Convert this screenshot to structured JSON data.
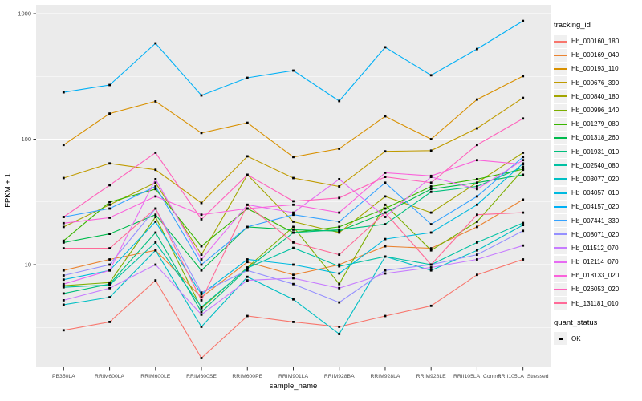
{
  "chart_data": {
    "type": "line",
    "title": "",
    "xlabel": "sample_name",
    "ylabel": "FPKM + 1",
    "y_scale": "log10",
    "ylim": [
      1.5,
      1100
    ],
    "y_ticks": [
      10,
      100,
      1000
    ],
    "y_tick_labels": [
      "10",
      "100",
      "1000"
    ],
    "grid": true,
    "panel_background": "#EBEBEB",
    "gridline_color": "#FFFFFF",
    "axis_text_color": "#4D4D4D",
    "point_color": "#000000",
    "legend_position": "right",
    "categories": [
      "PB350LA",
      "RRIM600LA",
      "RRIM600LE",
      "RRIM600SE",
      "RRIM600PE",
      "RRIM901LA",
      "RRIM928BA",
      "RRIM928LA",
      "RRIM928LE",
      "RRII105LA_Control",
      "RRII105LA_Stressed"
    ],
    "series": [
      {
        "name": "Hb_000160_180",
        "color": "#F8766D",
        "values": [
          3.0,
          3.5,
          7.5,
          1.8,
          3.9,
          3.5,
          3.2,
          3.9,
          4.7,
          8.3,
          11
        ]
      },
      {
        "name": "Hb_000169_040",
        "color": "#EA8331",
        "values": [
          9,
          11,
          13,
          5.5,
          10.5,
          8.3,
          10,
          14,
          13.5,
          20,
          33
        ]
      },
      {
        "name": "Hb_000193_110",
        "color": "#D89000",
        "values": [
          90,
          160,
          200,
          112,
          135,
          72,
          84,
          152,
          100,
          207,
          318
        ]
      },
      {
        "name": "Hb_000676_390",
        "color": "#C09B00",
        "values": [
          49,
          64,
          57,
          31,
          73,
          49,
          42,
          80,
          81,
          122,
          213
        ]
      },
      {
        "name": "Hb_000840_180",
        "color": "#A3A500",
        "values": [
          20,
          30,
          45,
          12,
          52,
          22,
          18,
          35,
          26,
          45,
          78
        ]
      },
      {
        "name": "Hb_000996_140",
        "color": "#7CAE00",
        "values": [
          6.8,
          7.2,
          24,
          4.5,
          9.5,
          20,
          7,
          30,
          13,
          22,
          57
        ]
      },
      {
        "name": "Hb_001279_080",
        "color": "#39B600",
        "values": [
          15.5,
          31.5,
          40,
          14,
          28,
          18,
          20,
          28,
          42,
          48,
          57.5
        ]
      },
      {
        "name": "Hb_001318_260",
        "color": "#00BB4E",
        "values": [
          15,
          17.6,
          25,
          9,
          20,
          19,
          18.5,
          26,
          40,
          45,
          52
        ]
      },
      {
        "name": "Hb_001931_010",
        "color": "#00BF7D",
        "values": [
          5.9,
          7,
          18,
          4.2,
          9.3,
          18,
          19,
          21,
          38,
          42,
          60
        ]
      },
      {
        "name": "Hb_002540_080",
        "color": "#00C1A3",
        "values": [
          6.6,
          6.9,
          15,
          4.6,
          9.4,
          13.6,
          9.7,
          11.6,
          10,
          15,
          21.5
        ]
      },
      {
        "name": "Hb_003077_020",
        "color": "#00BFC4",
        "values": [
          4.8,
          5.5,
          13,
          3.2,
          8,
          5.3,
          2.8,
          11.6,
          9,
          13,
          20.7
        ]
      },
      {
        "name": "Hb_004057_010",
        "color": "#00BAE0",
        "values": [
          7.6,
          9,
          22,
          5.8,
          11,
          10,
          8.5,
          16,
          18,
          30,
          64
        ]
      },
      {
        "name": "Hb_004157_020",
        "color": "#00B0F6",
        "values": [
          236,
          270,
          580,
          223,
          308,
          352,
          201,
          540,
          323,
          523,
          875
        ]
      },
      {
        "name": "Hb_007441_330",
        "color": "#35A2FF",
        "values": [
          24,
          28,
          42,
          10,
          20,
          25,
          22,
          45,
          21,
          35,
          72
        ]
      },
      {
        "name": "Hb_008071_020",
        "color": "#9590FF",
        "values": [
          8.2,
          10,
          28,
          6,
          9,
          7,
          5,
          9,
          10,
          12,
          18.6
        ]
      },
      {
        "name": "Hb_011512_070",
        "color": "#C77CFF",
        "values": [
          5.2,
          6.5,
          10,
          4,
          7.5,
          7.8,
          6.5,
          8.5,
          9.5,
          11,
          14.2
        ]
      },
      {
        "name": "Hb_012114_070",
        "color": "#E76BF3",
        "values": [
          7,
          9,
          48,
          11,
          30,
          26,
          48,
          24,
          50,
          40,
          68
        ]
      },
      {
        "name": "Hb_018133_020",
        "color": "#FA62DB",
        "values": [
          21.4,
          23.7,
          35,
          25,
          28,
          30,
          26,
          54,
          51,
          68,
          63
        ]
      },
      {
        "name": "Hb_026053_020",
        "color": "#FF62BC",
        "values": [
          24,
          43,
          78,
          23,
          52,
          32,
          34,
          50,
          45,
          90,
          146
        ]
      },
      {
        "name": "Hb_131181_010",
        "color": "#FF6A98",
        "values": [
          13.5,
          13.5,
          28,
          5.2,
          30,
          15,
          12,
          26,
          10,
          25,
          26
        ]
      }
    ],
    "legend": {
      "series_title": "tracking_id",
      "status_title": "quant_status",
      "status_items": [
        {
          "label": "OK",
          "color": "#000000"
        }
      ]
    }
  }
}
